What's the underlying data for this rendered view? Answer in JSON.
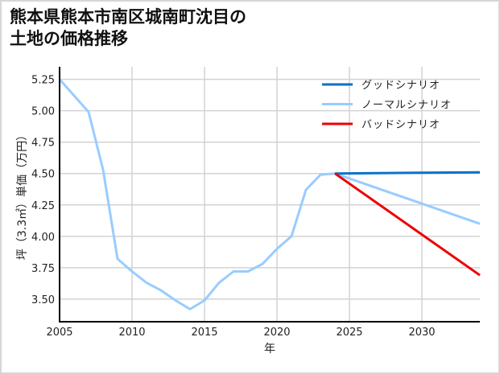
{
  "title": {
    "line1": "熊本県熊本市南区城南町沈目の",
    "line2": "土地の価格推移"
  },
  "colors": {
    "good": "#0a72c8",
    "normal": "#99ccff",
    "bad": "#ee0000",
    "grid": "#d3d3d3",
    "axis": "#000000",
    "frame": "#d6d6d6"
  },
  "chart_data": {
    "type": "line",
    "title": "熊本県熊本市南区城南町沈目の土地の価格推移",
    "xlabel": "年",
    "ylabel": "坪（3.3㎡）単価（万円）",
    "xlim": [
      2005,
      2034
    ],
    "ylim": [
      3.32,
      5.35
    ],
    "xticks": [
      2005,
      2010,
      2015,
      2020,
      2025,
      2030
    ],
    "yticks": [
      3.5,
      3.75,
      4.0,
      4.25,
      4.5,
      4.75,
      5.0,
      5.25
    ],
    "ytick_labels": [
      "3.50",
      "3.75",
      "4.00",
      "4.25",
      "4.50",
      "4.75",
      "5.00",
      "5.25"
    ],
    "grid": true,
    "legend_position": "upper right",
    "series": [
      {
        "name": "グッドシナリオ",
        "color": "#0a72c8",
        "x": [
          2024,
          2034
        ],
        "y": [
          4.5,
          4.51
        ]
      },
      {
        "name": "ノーマルシナリオ",
        "color": "#99ccff",
        "x": [
          2005,
          2006,
          2007,
          2008,
          2009,
          2010,
          2011,
          2012,
          2013,
          2014,
          2015,
          2016,
          2017,
          2018,
          2019,
          2020,
          2021,
          2022,
          2023,
          2024,
          2034
        ],
        "y": [
          5.25,
          5.12,
          4.99,
          4.53,
          3.82,
          3.72,
          3.63,
          3.57,
          3.49,
          3.42,
          3.49,
          3.63,
          3.72,
          3.72,
          3.78,
          3.9,
          4.0,
          4.37,
          4.49,
          4.5,
          4.1
        ]
      },
      {
        "name": "バッドシナリオ",
        "color": "#ee0000",
        "x": [
          2024,
          2034
        ],
        "y": [
          4.5,
          3.69
        ]
      }
    ]
  }
}
